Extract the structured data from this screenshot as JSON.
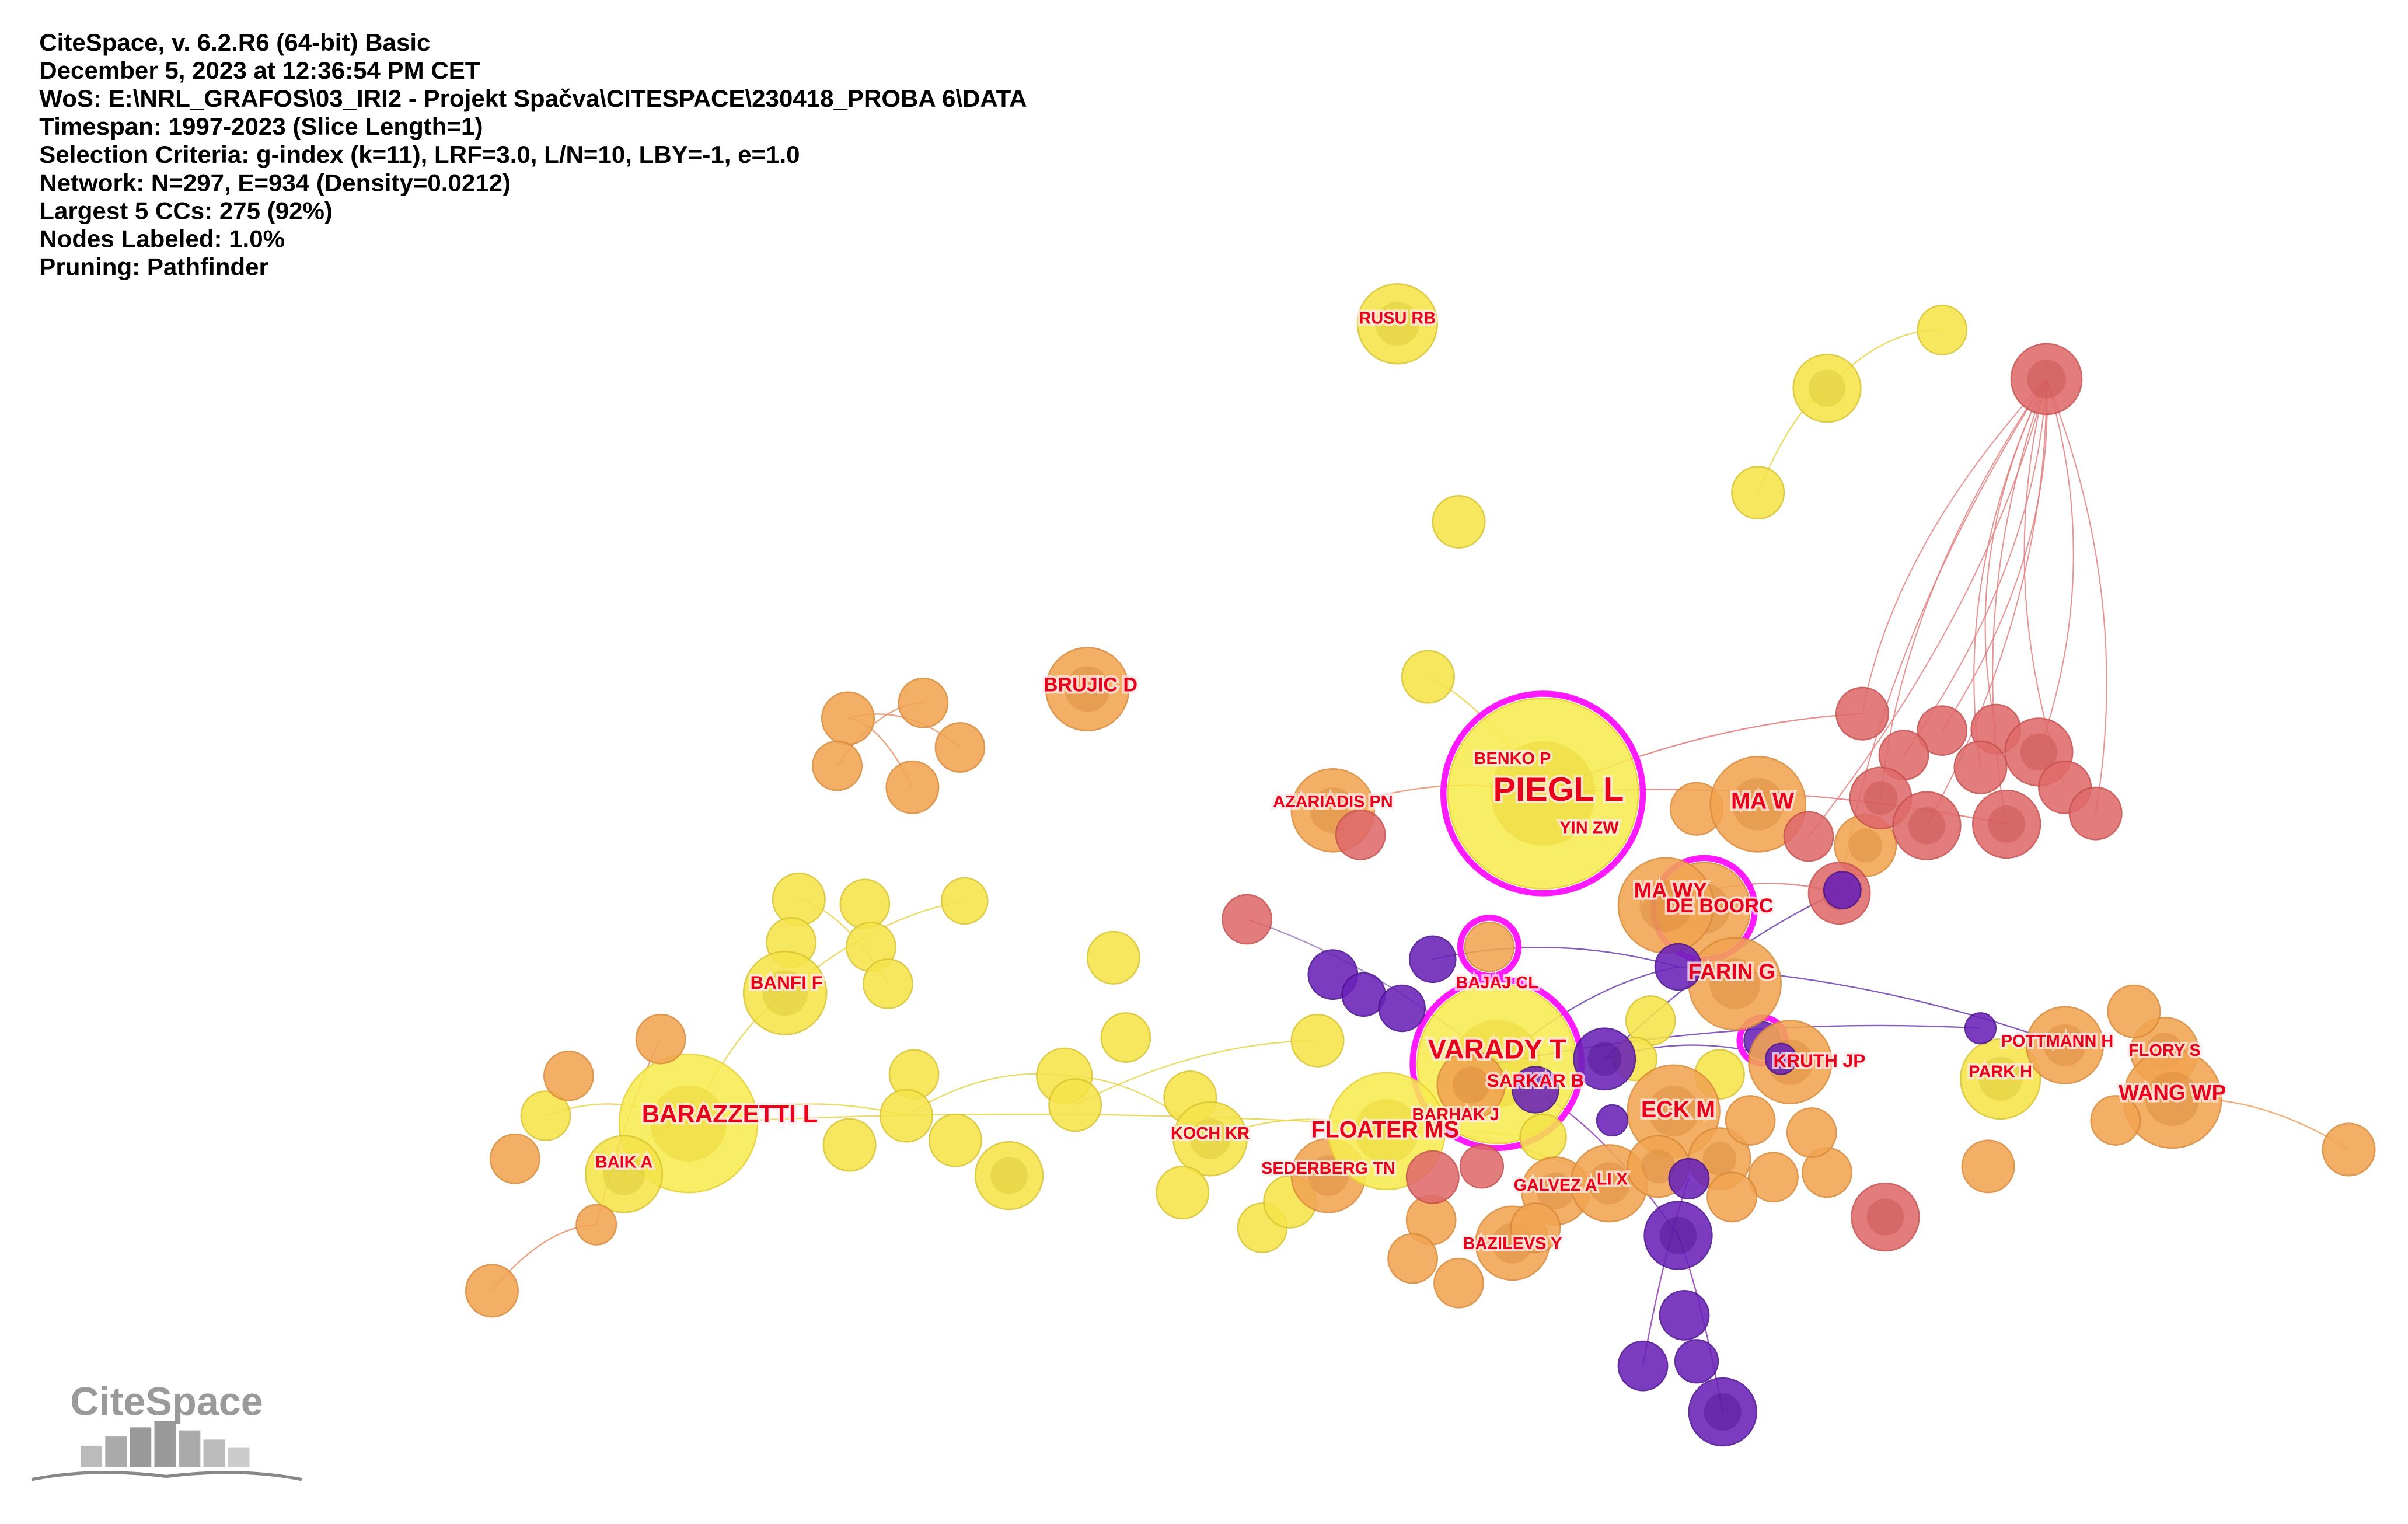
{
  "header": {
    "lines": [
      "CiteSpace, v. 6.2.R6 (64-bit) Basic",
      "December 5, 2023 at 12:36:54 PM CET",
      "WoS: E:\\NRL_GRAFOS\\03_IRI2 - Projekt Spačva\\CITESPACE\\230418_PROBA 6\\DATA",
      "Timespan: 1997-2023 (Slice Length=1)",
      "Selection Criteria: g-index (k=11), LRF=3.0, L/N=10, LBY=-1, e=1.0",
      "Network: N=297, E=934 (Density=0.0212)",
      "Largest 5 CCs: 275 (92%)",
      "Nodes Labeled: 1.0%",
      "Pruning: Pathfinder"
    ]
  },
  "nodes": [
    {
      "label": "RUSU RB"
    },
    {
      "label": "BRUJIC D"
    },
    {
      "label": "AZARIADIS PN"
    },
    {
      "label": "BENKO P"
    },
    {
      "label": "PIEGL L"
    },
    {
      "label": "YIN ZW"
    },
    {
      "label": "MA W"
    },
    {
      "label": "MA WY"
    },
    {
      "label": "DE BOORC"
    },
    {
      "label": "FARIN G"
    },
    {
      "label": "BAJAJ CL"
    },
    {
      "label": "VARADY T"
    },
    {
      "label": "SARKAR B"
    },
    {
      "label": "KRUTH JP"
    },
    {
      "label": "POTTMANN H"
    },
    {
      "label": "FLORY S"
    },
    {
      "label": "PARK H"
    },
    {
      "label": "WANG WP"
    },
    {
      "label": "ECK M"
    },
    {
      "label": "BARHAK J"
    },
    {
      "label": "FLOATER MS"
    },
    {
      "label": "KOCH KR"
    },
    {
      "label": "SEDERBERG TN"
    },
    {
      "label": "GALVEZ A"
    },
    {
      "label": "LI X"
    },
    {
      "label": "BAZILEVS Y"
    },
    {
      "label": "BANFI F"
    },
    {
      "label": "BARAZZETTI L"
    },
    {
      "label": "BAIK A"
    }
  ],
  "logo": {
    "text": "CiteSpace"
  }
}
